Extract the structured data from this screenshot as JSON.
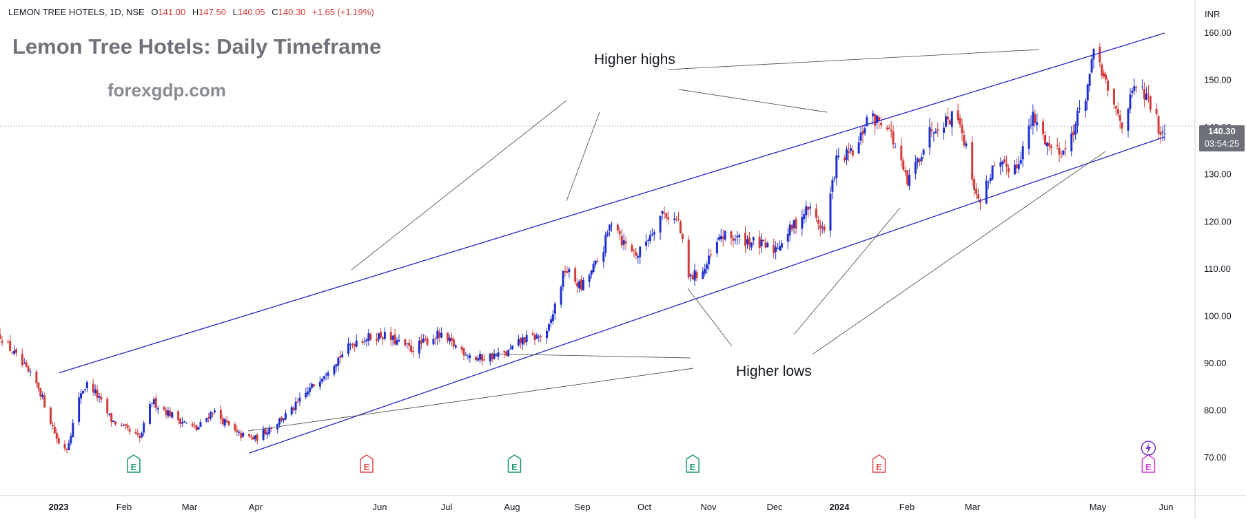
{
  "header": {
    "symbol_line": "LEMON TREE HOTELS, 1D, NSE",
    "open_label": "O",
    "open": "141.00",
    "high_label": "H",
    "high": "147.50",
    "low_label": "L",
    "low": "140.05",
    "close_label": "C",
    "close": "140.30",
    "change": "+1.65 (+1.19%)"
  },
  "overlay": {
    "title": "Lemon Tree Hotels: Daily Timeframe",
    "website": "forexgdp.com",
    "higher_highs": "Higher highs",
    "higher_lows": "Higher lows"
  },
  "price_axis": {
    "currency": "INR",
    "last_price": "140.30",
    "countdown": "03:54:25"
  },
  "colors": {
    "up": "#1e2fcf",
    "down": "#d23a3a",
    "channel": "#2222cc",
    "annotation_line": "#555555",
    "earnings_green": "#16966b",
    "earnings_red": "#e0474c",
    "earnings_pink": "#d63ad6"
  },
  "chart_data": {
    "type": "candlestick",
    "y_ticks": [
      "70.00",
      "80.00",
      "90.00",
      "100.00",
      "110.00",
      "120.00",
      "130.00",
      "140.00",
      "150.00",
      "160.00"
    ],
    "ylim": [
      62,
      167
    ],
    "x_labels": [
      "2023",
      "Feb",
      "Mar",
      "Apr",
      "Jun",
      "Jul",
      "Aug",
      "Sep",
      "Oct",
      "Nov",
      "Dec",
      "2024",
      "Feb",
      "Mar",
      "May",
      "Jun"
    ],
    "key_prices": [
      [
        "2022-12-01",
        96
      ],
      [
        "2022-12-20",
        85
      ],
      [
        "2022-12-30",
        73
      ],
      [
        "2023-01-03",
        72
      ],
      [
        "2023-01-10",
        84
      ],
      [
        "2023-01-14",
        86
      ],
      [
        "2023-01-25",
        78
      ],
      [
        "2023-02-08",
        74
      ],
      [
        "2023-02-14",
        82
      ],
      [
        "2023-02-24",
        79
      ],
      [
        "2023-03-08",
        76
      ],
      [
        "2023-03-16",
        80
      ],
      [
        "2023-03-28",
        75
      ],
      [
        "2023-04-06",
        74
      ],
      [
        "2023-04-24",
        80
      ],
      [
        "2023-05-12",
        89
      ],
      [
        "2023-05-26",
        95
      ],
      [
        "2023-06-08",
        96
      ],
      [
        "2023-06-22",
        93
      ],
      [
        "2023-07-05",
        96
      ],
      [
        "2023-07-24",
        91
      ],
      [
        "2023-08-08",
        92
      ],
      [
        "2023-08-16",
        95
      ],
      [
        "2023-08-28",
        96
      ],
      [
        "2023-09-06",
        110
      ],
      [
        "2023-09-14",
        106
      ],
      [
        "2023-09-24",
        113
      ],
      [
        "2023-09-30",
        122
      ],
      [
        "2023-10-04",
        116
      ],
      [
        "2023-10-12",
        113
      ],
      [
        "2023-10-24",
        122
      ],
      [
        "2023-11-01",
        120
      ],
      [
        "2023-11-06",
        108
      ],
      [
        "2023-11-14",
        110
      ],
      [
        "2023-11-22",
        117
      ],
      [
        "2023-12-06",
        116
      ],
      [
        "2023-12-18",
        114
      ],
      [
        "2024-01-04",
        123
      ],
      [
        "2024-01-12",
        118
      ],
      [
        "2024-01-18",
        133
      ],
      [
        "2024-01-28",
        135
      ],
      [
        "2024-02-02",
        142
      ],
      [
        "2024-02-12",
        141
      ],
      [
        "2024-02-22",
        128
      ],
      [
        "2024-03-05",
        140
      ],
      [
        "2024-03-18",
        143
      ],
      [
        "2024-03-28",
        124
      ],
      [
        "2024-04-04",
        131
      ],
      [
        "2024-04-16",
        132
      ],
      [
        "2024-04-24",
        142
      ],
      [
        "2024-05-02",
        136
      ],
      [
        "2024-05-10",
        135
      ],
      [
        "2024-05-20",
        147
      ],
      [
        "2024-05-25",
        157
      ],
      [
        "2024-05-31",
        147
      ],
      [
        "2024-06-07",
        141
      ],
      [
        "2024-06-14",
        149
      ],
      [
        "2024-06-21",
        145
      ],
      [
        "2024-06-26",
        139
      ],
      [
        "2024-06-28",
        140.3
      ]
    ],
    "channel": {
      "upper": [
        [
          "2022-12-30",
          88
        ],
        [
          "2024-06-28",
          160
        ]
      ],
      "lower": [
        [
          "2023-04-03",
          71
        ],
        [
          "2024-06-28",
          138
        ]
      ]
    },
    "earnings_markers": [
      {
        "date": "2023-02-05",
        "type": "beat",
        "label": "E"
      },
      {
        "date": "2023-05-31",
        "type": "miss",
        "label": "E"
      },
      {
        "date": "2023-08-12",
        "type": "beat",
        "label": "E"
      },
      {
        "date": "2023-11-08",
        "type": "beat",
        "label": "E"
      },
      {
        "date": "2024-02-08",
        "type": "miss",
        "label": "E"
      },
      {
        "date": "2024-06-20",
        "type": "upcoming",
        "label": "E"
      }
    ]
  }
}
